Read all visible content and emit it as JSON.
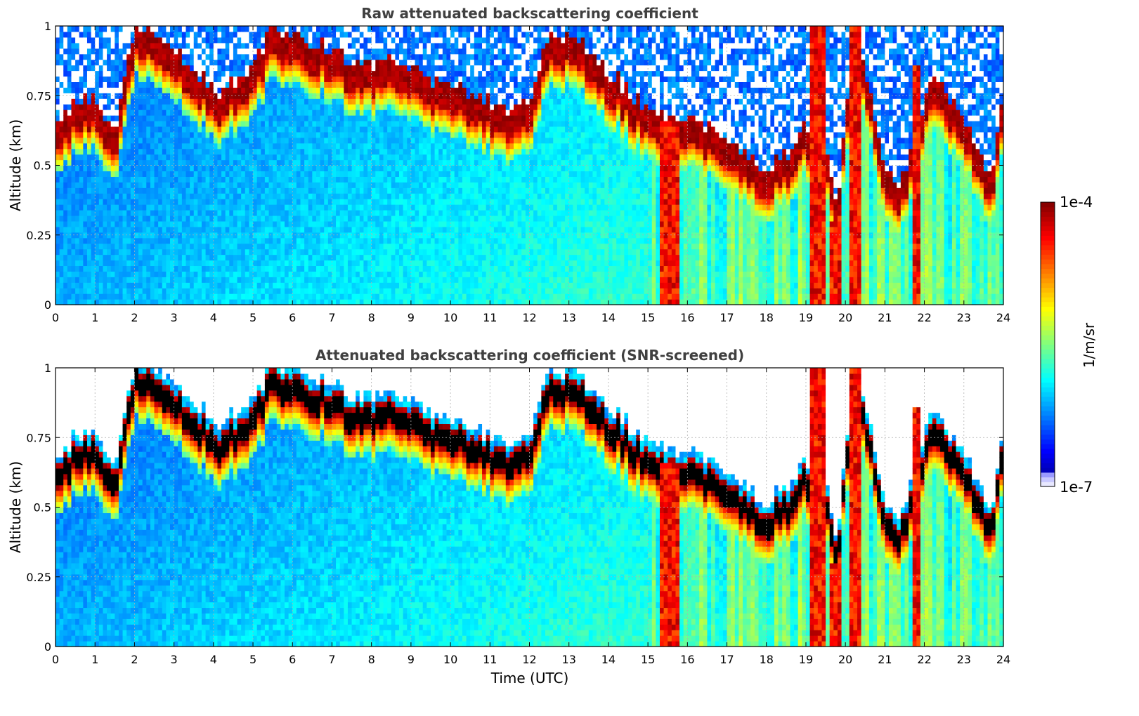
{
  "colors": {
    "jet_low": "#00008f",
    "jet_high": "#800000",
    "below_min": "#ffffff",
    "saturated": "#000000",
    "grid": "#b0b0b0"
  },
  "chart_data": [
    {
      "type": "heatmap",
      "title": "Raw attenuated backscattering coefficient",
      "xlabel": "",
      "ylabel": "Altitude (km)",
      "xlim": [
        0,
        24
      ],
      "ylim": [
        0,
        1
      ],
      "xticks": [
        "0",
        "1",
        "2",
        "3",
        "4",
        "5",
        "6",
        "7",
        "8",
        "9",
        "10",
        "11",
        "12",
        "13",
        "14",
        "15",
        "16",
        "17",
        "18",
        "19",
        "20",
        "21",
        "22",
        "23",
        "24"
      ],
      "yticks": [
        "0",
        "0.25",
        "0.5",
        "0.75",
        "1"
      ],
      "grid": true,
      "colormap": "jet",
      "color_scale": "log",
      "clim": [
        "1e-7",
        "1e-4"
      ],
      "screened": false,
      "layer_top_km": [
        [
          0,
          0.6
        ],
        [
          0.5,
          0.68
        ],
        [
          1.0,
          0.72
        ],
        [
          1.5,
          0.56
        ],
        [
          1.7,
          0.74
        ],
        [
          2.0,
          0.95
        ],
        [
          2.3,
          0.95
        ],
        [
          2.8,
          0.88
        ],
        [
          3.2,
          0.85
        ],
        [
          3.8,
          0.78
        ],
        [
          4.2,
          0.72
        ],
        [
          4.6,
          0.78
        ],
        [
          5.0,
          0.82
        ],
        [
          5.5,
          0.95
        ],
        [
          6.0,
          0.92
        ],
        [
          6.5,
          0.9
        ],
        [
          7.0,
          0.88
        ],
        [
          7.5,
          0.84
        ],
        [
          8.0,
          0.82
        ],
        [
          8.5,
          0.86
        ],
        [
          9.0,
          0.83
        ],
        [
          9.5,
          0.77
        ],
        [
          10.0,
          0.74
        ],
        [
          10.5,
          0.72
        ],
        [
          11.0,
          0.69
        ],
        [
          11.5,
          0.66
        ],
        [
          12.0,
          0.7
        ],
        [
          12.5,
          0.92
        ],
        [
          13.0,
          0.93
        ],
        [
          13.5,
          0.88
        ],
        [
          14.0,
          0.8
        ],
        [
          14.5,
          0.73
        ],
        [
          15.0,
          0.66
        ],
        [
          15.5,
          0.64
        ],
        [
          16.0,
          0.62
        ],
        [
          16.5,
          0.6
        ],
        [
          17.0,
          0.56
        ],
        [
          17.5,
          0.5
        ],
        [
          18.0,
          0.45
        ],
        [
          18.5,
          0.5
        ],
        [
          19.0,
          0.6
        ],
        [
          19.5,
          0.55
        ],
        [
          19.8,
          0.28
        ],
        [
          20.2,
          0.98
        ],
        [
          20.6,
          0.75
        ],
        [
          21.0,
          0.45
        ],
        [
          21.4,
          0.4
        ],
        [
          21.8,
          0.58
        ],
        [
          22.2,
          0.8
        ],
        [
          22.6,
          0.7
        ],
        [
          23.0,
          0.65
        ],
        [
          23.4,
          0.5
        ],
        [
          23.7,
          0.4
        ],
        [
          24.0,
          0.72
        ]
      ],
      "heavy_columns_utc": [
        {
          "x": [
            15.3,
            15.8
          ],
          "top_km": 0.65
        },
        {
          "x": [
            19.15,
            19.5
          ],
          "top_km": 1.0
        },
        {
          "x": [
            19.6,
            19.95
          ],
          "top_km": 0.3
        },
        {
          "x": [
            20.1,
            20.35
          ],
          "top_km": 1.0
        },
        {
          "x": [
            21.75,
            21.9
          ],
          "top_km": 0.85
        }
      ]
    },
    {
      "type": "heatmap",
      "title": "Attenuated backscattering coefficient (SNR-screened)",
      "xlabel": "Time (UTC)",
      "ylabel": "Altitude (km)",
      "xlim": [
        0,
        24
      ],
      "ylim": [
        0,
        1
      ],
      "xticks": [
        "0",
        "1",
        "2",
        "3",
        "4",
        "5",
        "6",
        "7",
        "8",
        "9",
        "10",
        "11",
        "12",
        "13",
        "14",
        "15",
        "16",
        "17",
        "18",
        "19",
        "20",
        "21",
        "22",
        "23",
        "24"
      ],
      "yticks": [
        "0",
        "0.25",
        "0.5",
        "0.75",
        "1"
      ],
      "grid": true,
      "colormap": "jet",
      "color_scale": "log",
      "clim": [
        "1e-7",
        "1e-4"
      ],
      "screened": true
    }
  ],
  "colorbar": {
    "label": "1/m/sr",
    "max_label": "1e-4",
    "min_label": "1e-7"
  }
}
